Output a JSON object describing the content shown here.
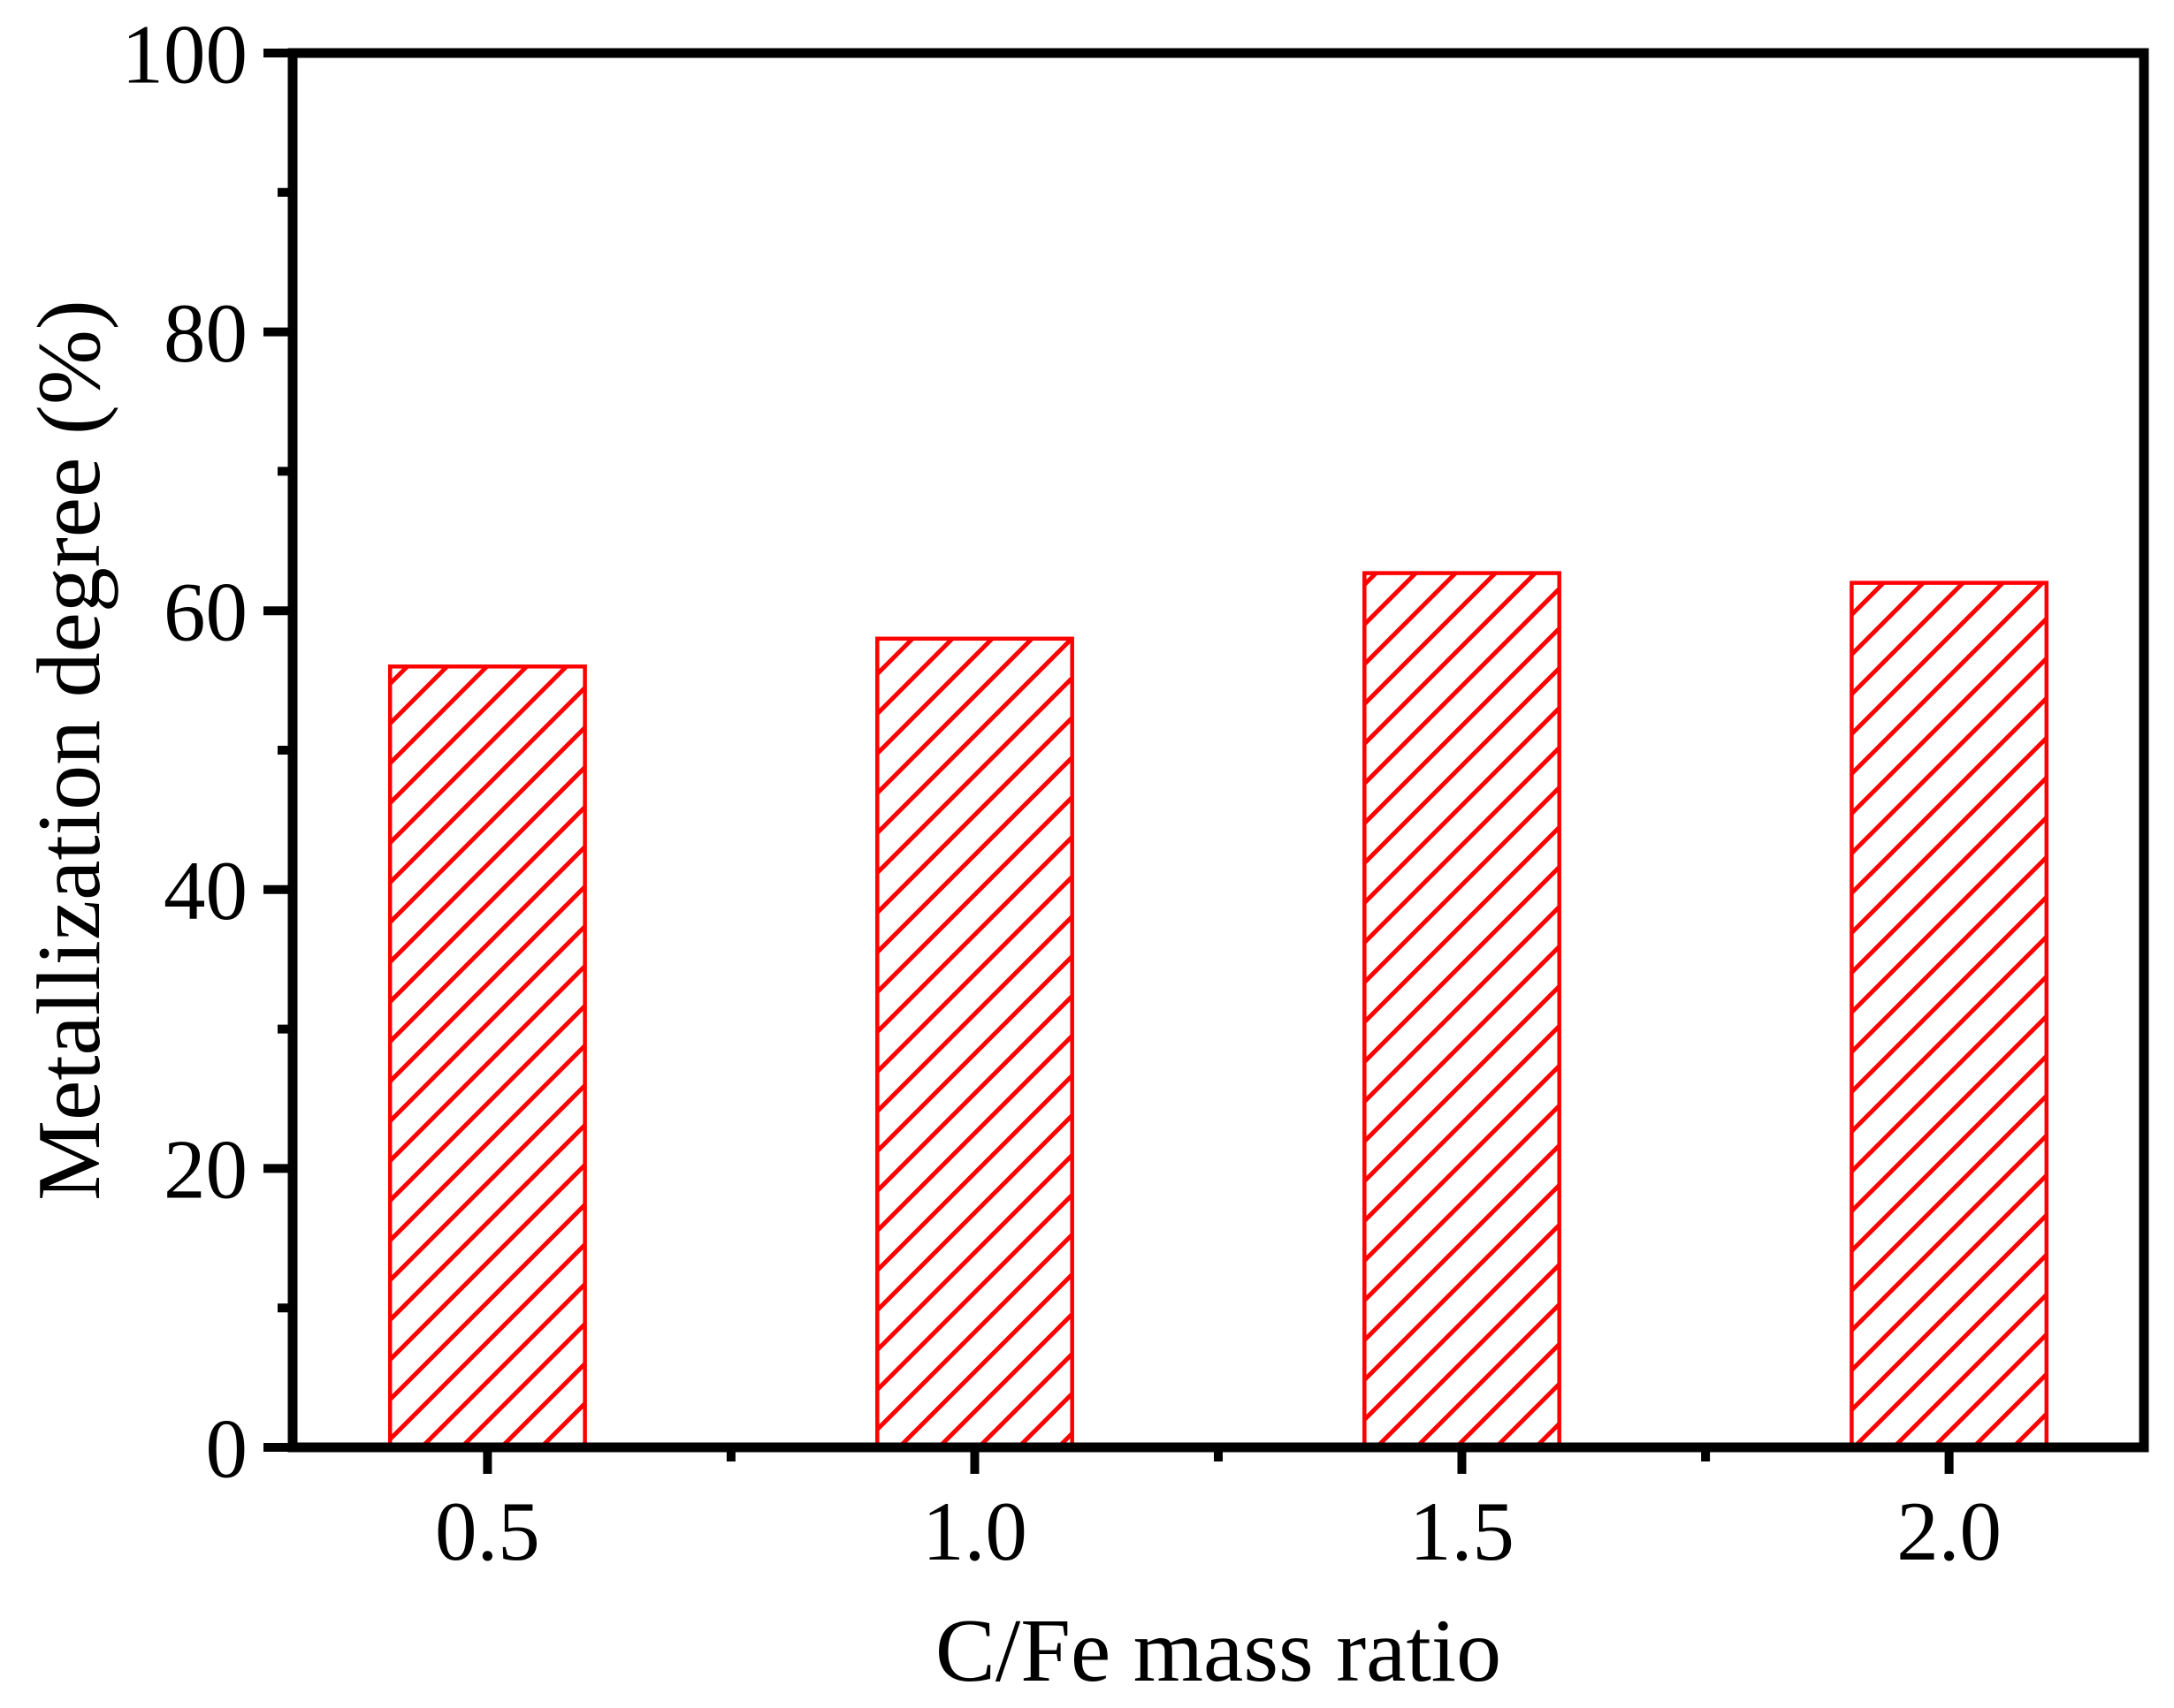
{
  "chart_data": {
    "type": "bar",
    "xlabel": "C/Fe mass ratio",
    "ylabel": "Metallization degree (%)",
    "categories": [
      "0.5",
      "1.0",
      "1.5",
      "2.0"
    ],
    "x_positions": [
      0.5,
      1.0,
      1.5,
      2.0
    ],
    "values": [
      56.0,
      58.0,
      62.7,
      62.0
    ],
    "series_name": "Metallization degree",
    "ylim": [
      0,
      100
    ],
    "xlim": [
      0.3,
      2.2
    ],
    "y_major_ticks": [
      0,
      20,
      40,
      60,
      80,
      100
    ],
    "y_tick_labels": [
      "0",
      "20",
      "40",
      "60",
      "80",
      "100"
    ],
    "y_minor_ticks": [
      10,
      30,
      50,
      70,
      90
    ],
    "x_minor_ticks": [
      0.75,
      1.25,
      1.75
    ],
    "bar_width": 0.2,
    "bar_color": "#ff0000",
    "bar_fill": "#ffffff",
    "hatch": "diagonal-forward",
    "axis_color": "#000000",
    "grid": false,
    "legend_position": "none"
  }
}
